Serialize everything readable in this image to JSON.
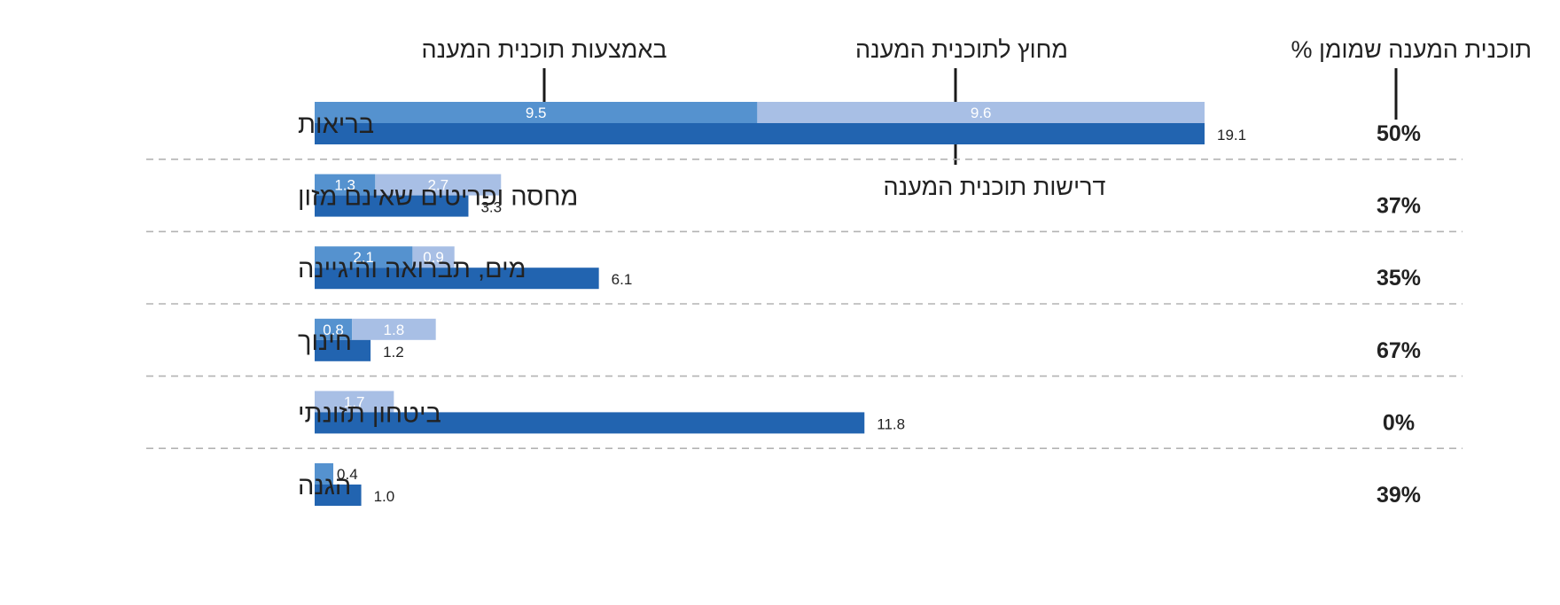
{
  "headers": {
    "inside": "באמצעות תוכנית המענה",
    "outside": "מחוץ לתוכנית המענה",
    "funded_pct": "% תוכנית המענה שמומן",
    "requirements": "דרישות תוכנית המענה"
  },
  "colors": {
    "inside": "#5592cf",
    "outside": "#a8bfe5",
    "requirements": "#2264b0"
  },
  "chart_data": {
    "type": "bar",
    "orientation": "horizontal",
    "categories": [
      "בריאות",
      "מחסה ופריטים שאינם מזון",
      "מים, תברואה והיגיינה",
      "חינוך",
      "ביטחון תזונתי",
      "הגנה"
    ],
    "series": [
      {
        "name": "באמצעות תוכנית המענה",
        "stacked_group": "funding",
        "values": [
          9.5,
          1.3,
          2.1,
          0.8,
          0,
          0.4
        ],
        "labels": [
          "9.5",
          "1.3",
          "2.1",
          "0.8",
          "",
          "0.4"
        ]
      },
      {
        "name": "מחוץ לתוכנית המענה",
        "stacked_group": "funding",
        "values": [
          9.6,
          2.7,
          0.9,
          1.8,
          1.7,
          0
        ],
        "labels": [
          "9.6",
          "2.7",
          "0.9",
          "1.8",
          "1.7",
          ""
        ]
      },
      {
        "name": "דרישות תוכנית המענה",
        "values": [
          19.1,
          3.3,
          6.1,
          1.2,
          11.8,
          1.0
        ],
        "labels": [
          "19.1",
          "3.3",
          "6.1",
          "1.2",
          "11.8",
          "1.0"
        ]
      }
    ],
    "funded_percent": [
      "50%",
      "37%",
      "35%",
      "67%",
      "0%",
      "39%"
    ],
    "xlim": [
      0,
      19.1
    ],
    "grid": false,
    "legend": "callout labels above the first row"
  }
}
